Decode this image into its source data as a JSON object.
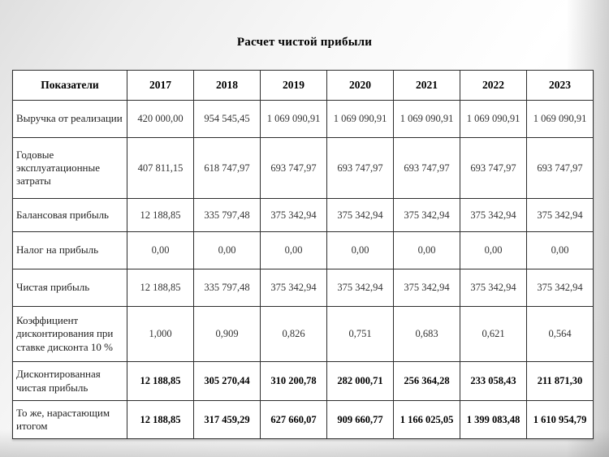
{
  "title": "Расчет чистой прибыли",
  "table": {
    "header": [
      "Показатели",
      "2017",
      "2018",
      "2019",
      "2020",
      "2021",
      "2022",
      "2023"
    ],
    "rows": [
      {
        "label": "Выручка от реализации",
        "values": [
          "420 000,00",
          "954 545,45",
          "1 069 090,91",
          "1 069 090,91",
          "1 069 090,91",
          "1 069 090,91",
          "1 069 090,91"
        ],
        "bold": false
      },
      {
        "label": "Годовые эксплуатационные затраты",
        "values": [
          "407 811,15",
          "618 747,97",
          "693 747,97",
          "693 747,97",
          "693 747,97",
          "693 747,97",
          "693 747,97"
        ],
        "bold": false
      },
      {
        "label": "Балансовая прибыль",
        "values": [
          "12 188,85",
          "335 797,48",
          "375 342,94",
          "375 342,94",
          "375 342,94",
          "375 342,94",
          "375 342,94"
        ],
        "bold": false
      },
      {
        "label": "Налог на прибыль",
        "values": [
          "0,00",
          "0,00",
          "0,00",
          "0,00",
          "0,00",
          "0,00",
          "0,00"
        ],
        "bold": false
      },
      {
        "label": "Чистая прибыль",
        "values": [
          "12 188,85",
          "335 797,48",
          "375 342,94",
          "375 342,94",
          "375 342,94",
          "375 342,94",
          "375 342,94"
        ],
        "bold": false
      },
      {
        "label": "Коэффициент дисконтирования при ставке дисконта 10 %",
        "values": [
          "1,000",
          "0,909",
          "0,826",
          "0,751",
          "0,683",
          "0,621",
          "0,564"
        ],
        "bold": false
      },
      {
        "label": "Дисконтированная чистая прибыль",
        "values": [
          "12 188,85",
          "305 270,44",
          "310 200,78",
          "282 000,71",
          "256 364,28",
          "233 058,43",
          "211 871,30"
        ],
        "bold": true
      },
      {
        "label": "То же, нарастающим итогом",
        "values": [
          "12 188,85",
          "317 459,29",
          "627 660,07",
          "909 660,77",
          "1 166 025,05",
          "1 399 083,48",
          "1 610 954,79"
        ],
        "bold": true
      }
    ]
  }
}
